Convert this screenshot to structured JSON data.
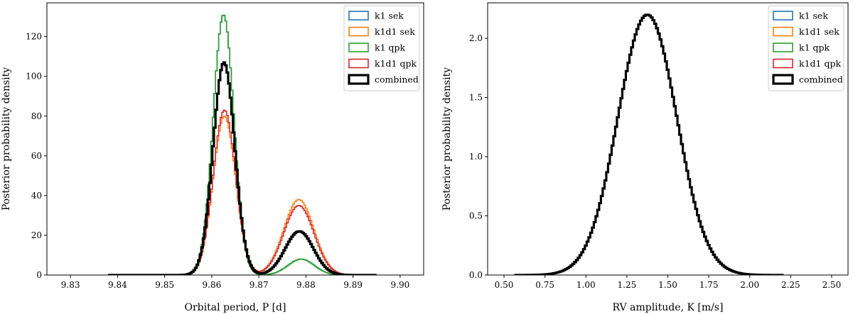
{
  "chart_data": [
    {
      "type": "step-histogram",
      "xlabel": "Orbital period, P [d]",
      "ylabel": "Posterior probability density",
      "xlim": [
        9.825,
        9.905
      ],
      "ylim": [
        0,
        137
      ],
      "xticks": [
        "9.83",
        "9.84",
        "9.85",
        "9.86",
        "9.87",
        "9.88",
        "9.89",
        "9.90"
      ],
      "xtick_values": [
        9.83,
        9.84,
        9.85,
        9.86,
        9.87,
        9.88,
        9.89,
        9.9
      ],
      "yticks": [
        "0",
        "20",
        "40",
        "60",
        "80",
        "100",
        "120"
      ],
      "ytick_values": [
        0,
        20,
        40,
        60,
        80,
        100,
        120
      ],
      "legend_position": "top-right",
      "bin_range": [
        9.838,
        9.895
      ],
      "series": [
        {
          "name": "k1 sek",
          "color": "#1f77b4",
          "line": "thin",
          "components": [
            {
              "mu": 9.8625,
              "sigma": 0.0022,
              "peak": 131
            },
            {
              "mu": 9.879,
              "sigma": 0.0028,
              "peak": 8
            }
          ]
        },
        {
          "name": "k1d1 sek",
          "color": "#ff7f0e",
          "line": "thin",
          "components": [
            {
              "mu": 9.8627,
              "sigma": 0.0024,
              "peak": 80
            },
            {
              "mu": 9.8785,
              "sigma": 0.0032,
              "peak": 38
            }
          ]
        },
        {
          "name": "k1 qpk",
          "color": "#2ca02c",
          "line": "thin",
          "components": [
            {
              "mu": 9.8625,
              "sigma": 0.0022,
              "peak": 131
            },
            {
              "mu": 9.879,
              "sigma": 0.0028,
              "peak": 8
            }
          ]
        },
        {
          "name": "k1d1 qpk",
          "color": "#d62728",
          "line": "thin",
          "components": [
            {
              "mu": 9.8627,
              "sigma": 0.0024,
              "peak": 83
            },
            {
              "mu": 9.8785,
              "sigma": 0.0032,
              "peak": 35
            }
          ]
        },
        {
          "name": "combined",
          "color": "#000000",
          "line": "thick",
          "components": [
            {
              "mu": 9.8626,
              "sigma": 0.0023,
              "peak": 107
            },
            {
              "mu": 9.8786,
              "sigma": 0.003,
              "peak": 22
            }
          ]
        }
      ]
    },
    {
      "type": "step-histogram",
      "xlabel": "RV amplitude, K [m/s]",
      "ylabel": "Posterior probability density",
      "xlim": [
        0.4,
        2.6
      ],
      "ylim": [
        0,
        2.3
      ],
      "xticks": [
        "0.50",
        "0.75",
        "1.00",
        "1.25",
        "1.50",
        "1.75",
        "2.00",
        "2.25",
        "2.50"
      ],
      "xtick_values": [
        0.5,
        0.75,
        1.0,
        1.25,
        1.5,
        1.75,
        2.0,
        2.25,
        2.5
      ],
      "yticks": [
        "0.0",
        "0.5",
        "1.0",
        "1.5",
        "2.0"
      ],
      "ytick_values": [
        0,
        0.5,
        1.0,
        1.5,
        2.0
      ],
      "legend_position": "top-right",
      "bin_range": [
        0.57,
        2.2
      ],
      "series": [
        {
          "name": "k1 sek",
          "color": "#1f77b4",
          "line": "thin",
          "components": [
            {
              "mu": 1.375,
              "sigma": 0.18,
              "peak": 2.2
            }
          ]
        },
        {
          "name": "k1d1 sek",
          "color": "#ff7f0e",
          "line": "thin",
          "components": [
            {
              "mu": 1.375,
              "sigma": 0.18,
              "peak": 2.2
            }
          ]
        },
        {
          "name": "k1 qpk",
          "color": "#2ca02c",
          "line": "thin",
          "components": [
            {
              "mu": 1.375,
              "sigma": 0.18,
              "peak": 2.2
            }
          ]
        },
        {
          "name": "k1d1 qpk",
          "color": "#d62728",
          "line": "thin",
          "components": [
            {
              "mu": 1.375,
              "sigma": 0.18,
              "peak": 2.2
            }
          ]
        },
        {
          "name": "combined",
          "color": "#000000",
          "line": "thick",
          "components": [
            {
              "mu": 1.375,
              "sigma": 0.18,
              "peak": 2.2
            }
          ]
        }
      ]
    }
  ]
}
